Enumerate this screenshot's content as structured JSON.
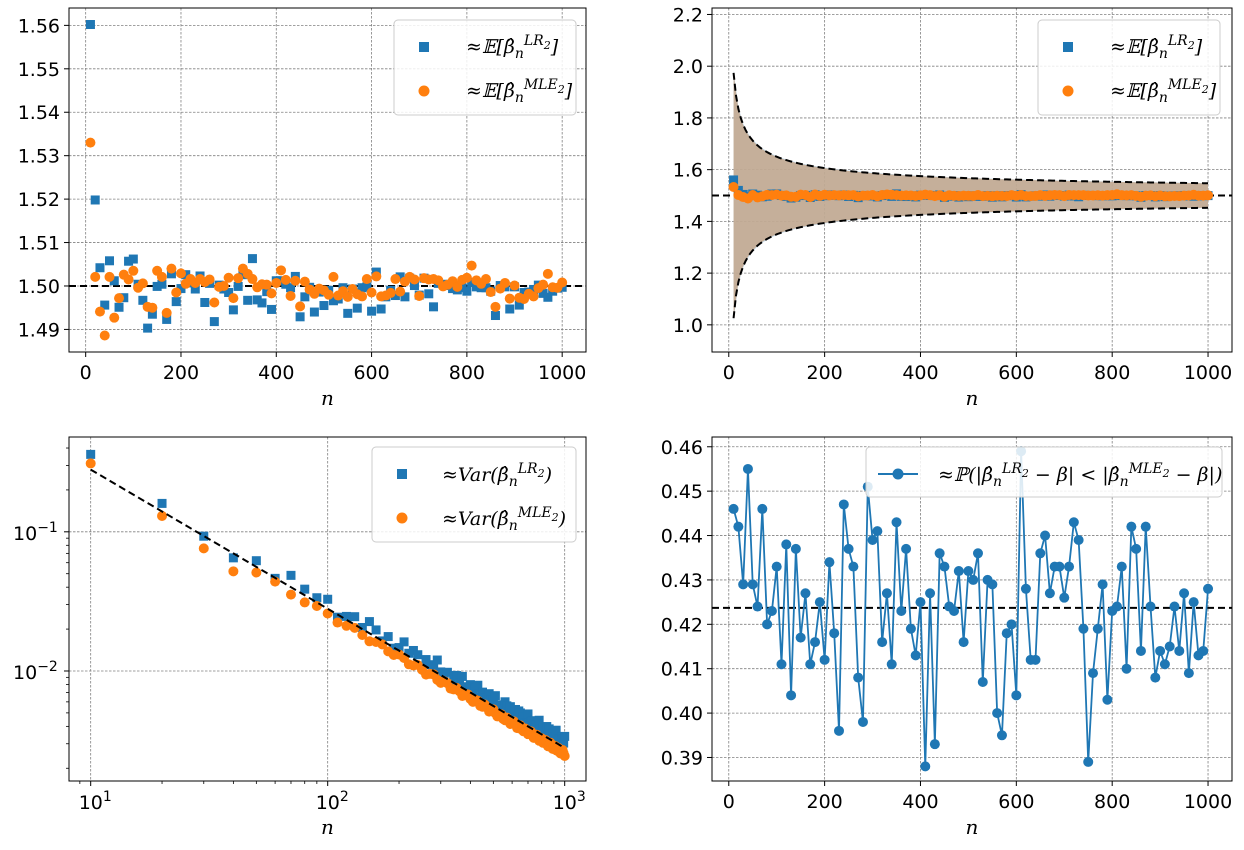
{
  "colors": {
    "blue": "#1f77b4",
    "orange": "#ff7f0e",
    "ref": "#000000",
    "band": "#c4a484"
  },
  "chart_data": [
    {
      "id": "mean",
      "type": "scatter",
      "xlabel": "n",
      "ylabel": "",
      "xlim": [
        -35,
        1050
      ],
      "ylim": [
        1.4848,
        1.564
      ],
      "xticks": [
        0,
        200,
        400,
        600,
        800,
        1000
      ],
      "xtick_labels": [
        "0",
        "200",
        "400",
        "600",
        "800",
        "1000"
      ],
      "yticks": [
        1.49,
        1.5,
        1.51,
        1.52,
        1.53,
        1.54,
        1.55,
        1.56
      ],
      "ytick_labels": [
        "1.49",
        "1.50",
        "1.51",
        "1.52",
        "1.53",
        "1.54",
        "1.55",
        "1.56"
      ],
      "grid": true,
      "legend_position": "top-right",
      "hline": 1.5,
      "x": [
        10,
        20,
        30,
        40,
        50,
        60,
        70,
        80,
        90,
        100,
        110,
        120,
        130,
        140,
        150,
        160,
        170,
        180,
        190,
        200,
        210,
        220,
        230,
        240,
        250,
        260,
        270,
        280,
        290,
        300,
        310,
        320,
        330,
        340,
        350,
        360,
        370,
        380,
        390,
        400,
        410,
        420,
        430,
        440,
        450,
        460,
        470,
        480,
        490,
        500,
        510,
        520,
        530,
        540,
        550,
        560,
        570,
        580,
        590,
        600,
        610,
        620,
        630,
        640,
        650,
        660,
        670,
        680,
        690,
        700,
        710,
        720,
        730,
        740,
        750,
        760,
        770,
        780,
        790,
        800,
        810,
        820,
        830,
        840,
        850,
        860,
        870,
        880,
        890,
        900,
        910,
        920,
        930,
        940,
        950,
        960,
        970,
        980,
        990,
        1000
      ],
      "series": [
        {
          "name": "≈𝔼[β̂ₙ^LR₂]",
          "marker": "square",
          "color": "#1f77b4",
          "values": [
            1.5602,
            1.5198,
            1.5042,
            1.4956,
            1.5058,
            1.5012,
            1.4951,
            1.4973,
            1.5057,
            1.5062,
            1.5004,
            1.4967,
            1.4903,
            1.4935,
            1.4999,
            1.5004,
            1.4923,
            1.5028,
            1.4964,
            1.4994,
            1.5026,
            1.5007,
            1.4993,
            1.5023,
            1.4962,
            1.5006,
            1.4918,
            1.5002,
            1.4993,
            1.4985,
            1.4945,
            1.4999,
            1.5026,
            1.4967,
            1.5063,
            1.4968,
            1.4961,
            1.4987,
            1.4946,
            1.5012,
            1.5012,
            1.5004,
            1.4996,
            1.5022,
            1.4929,
            1.4975,
            1.4997,
            1.494,
            1.4986,
            1.4955,
            1.499,
            1.4966,
            1.497,
            1.4996,
            1.4937,
            1.4993,
            1.4949,
            1.4996,
            1.4998,
            1.4942,
            1.5032,
            1.4947,
            1.4975,
            1.499,
            1.4978,
            1.5021,
            1.4975,
            1.5018,
            1.5001,
            1.4979,
            1.5018,
            1.4982,
            1.4952,
            1.5006,
            1.5004,
            1.5001,
            1.4994,
            1.4991,
            1.4996,
            1.4988,
            1.5008,
            1.4998,
            1.4996,
            1.4996,
            1.4988,
            1.4932,
            1.5001,
            1.4998,
            1.4947,
            1.4998,
            1.4956,
            1.4985,
            1.4986,
            1.4992,
            1.5002,
            1.4983,
            1.4974,
            1.4988,
            1.4995,
            1.4997
          ]
        },
        {
          "name": "≈𝔼[β̂ₙ^MLE₂]",
          "marker": "circle",
          "color": "#ff7f0e",
          "values": [
            1.533,
            1.5021,
            1.4941,
            1.4886,
            1.5021,
            1.4927,
            1.4972,
            1.5026,
            1.5015,
            1.5035,
            1.4996,
            1.5006,
            1.4952,
            1.495,
            1.5035,
            1.5021,
            1.4938,
            1.504,
            1.4985,
            1.5029,
            1.5005,
            1.5016,
            1.5007,
            1.5016,
            1.5009,
            1.5015,
            1.4962,
            1.4998,
            1.5,
            1.5019,
            1.4972,
            1.5018,
            1.504,
            1.5028,
            1.5016,
            1.4997,
            1.5004,
            1.5003,
            1.4983,
            1.5007,
            1.5036,
            1.5014,
            1.4977,
            1.5012,
            1.4953,
            1.501,
            1.4992,
            1.4982,
            1.4994,
            1.499,
            1.498,
            1.5021,
            1.4978,
            1.4988,
            1.4975,
            1.4993,
            1.4981,
            1.4976,
            1.5016,
            1.4985,
            1.5022,
            1.4976,
            1.4978,
            1.4984,
            1.5016,
            1.4987,
            1.501,
            1.5021,
            1.5015,
            1.4977,
            1.5018,
            1.5015,
            1.5016,
            1.5013,
            1.4999,
            1.5003,
            1.5011,
            1.4998,
            1.5014,
            1.5019,
            1.5047,
            1.5013,
            1.5005,
            1.5016,
            1.4986,
            1.4952,
            1.4994,
            1.5007,
            1.4971,
            1.5001,
            1.4973,
            1.497,
            1.4982,
            1.4976,
            1.4995,
            1.5003,
            1.5028,
            1.4997,
            1.4996,
            1.5008
          ]
        }
      ]
    },
    {
      "id": "band",
      "type": "line",
      "xlabel": "n",
      "ylabel": "",
      "xlim": [
        -35,
        1050
      ],
      "ylim": [
        0.895,
        2.225
      ],
      "xticks": [
        0,
        200,
        400,
        600,
        800,
        1000
      ],
      "xtick_labels": [
        "0",
        "200",
        "400",
        "600",
        "800",
        "1000"
      ],
      "yticks": [
        1.0,
        1.2,
        1.4,
        1.6,
        1.8,
        2.0,
        2.2
      ],
      "ytick_labels": [
        "1.0",
        "1.2",
        "1.4",
        "1.6",
        "1.8",
        "2.0",
        "2.2"
      ],
      "grid": true,
      "legend_position": "top-right",
      "hline": 1.5,
      "envelope_coefficient": 1.5,
      "series": [
        {
          "name": "≈𝔼[β̂ₙ^LR₂]",
          "marker": "square",
          "color": "#1f77b4"
        },
        {
          "name": "≈𝔼[β̂ₙ^MLE₂]",
          "marker": "circle",
          "color": "#ff7f0e"
        }
      ]
    },
    {
      "id": "variance",
      "type": "scatter",
      "xscale": "log",
      "yscale": "log",
      "xlabel": "n",
      "ylabel": "",
      "xlim": [
        8.1,
        1230
      ],
      "ylim": [
        0.00162,
        0.48
      ],
      "xticks": [
        10,
        100,
        1000
      ],
      "xtick_labels": [
        "10¹",
        "10²",
        "10³"
      ],
      "yticks": [
        0.01,
        0.1
      ],
      "ytick_labels": [
        "10⁻²",
        "10⁻¹"
      ],
      "grid": true,
      "legend_position": "top-right",
      "reference_line": {
        "style": "dashed",
        "formula": "2.8 / n"
      },
      "series": [
        {
          "name": "≈Var(β̂ₙ^LR₂)",
          "marker": "square",
          "color": "#1f77b4",
          "values_rule": "3.5 / n",
          "sample": [
            0.36,
            0.16,
            0.093,
            0.065,
            0.062
          ]
        },
        {
          "name": "≈Var(β̂ₙ^MLE₂)",
          "marker": "circle",
          "color": "#ff7f0e",
          "values_rule": "2.8 / n",
          "sample": [
            0.31,
            0.13,
            0.076,
            0.052,
            0.051
          ]
        }
      ]
    },
    {
      "id": "probability",
      "type": "line",
      "xlabel": "n",
      "ylabel": "",
      "xlim": [
        -35,
        1050
      ],
      "ylim": [
        0.3847,
        0.4622
      ],
      "xticks": [
        0,
        200,
        400,
        600,
        800,
        1000
      ],
      "xtick_labels": [
        "0",
        "200",
        "400",
        "600",
        "800",
        "1000"
      ],
      "yticks": [
        0.39,
        0.4,
        0.41,
        0.42,
        0.43,
        0.44,
        0.45,
        0.46
      ],
      "ytick_labels": [
        "0.39",
        "0.40",
        "0.41",
        "0.42",
        "0.43",
        "0.44",
        "0.45",
        "0.46"
      ],
      "grid": true,
      "legend_position": "top-right",
      "hline": 0.4237,
      "x": [
        10,
        20,
        30,
        40,
        50,
        60,
        70,
        80,
        90,
        100,
        110,
        120,
        130,
        140,
        150,
        160,
        170,
        180,
        190,
        200,
        210,
        220,
        230,
        240,
        250,
        260,
        270,
        280,
        290,
        300,
        310,
        320,
        330,
        340,
        350,
        360,
        370,
        380,
        390,
        400,
        410,
        420,
        430,
        440,
        450,
        460,
        470,
        480,
        490,
        500,
        510,
        520,
        530,
        540,
        550,
        560,
        570,
        580,
        590,
        600,
        610,
        620,
        630,
        640,
        650,
        660,
        670,
        680,
        690,
        700,
        710,
        720,
        730,
        740,
        750,
        760,
        770,
        780,
        790,
        800,
        810,
        820,
        830,
        840,
        850,
        860,
        870,
        880,
        890,
        900,
        910,
        920,
        930,
        940,
        950,
        960,
        970,
        980,
        990,
        1000
      ],
      "series": [
        {
          "name": "≈ℙ(|β̂ₙ^LR₂ − β| < |β̂ₙ^MLE₂ − β|)",
          "marker": "circle",
          "color": "#1f77b4",
          "values": [
            0.446,
            0.442,
            0.429,
            0.455,
            0.429,
            0.424,
            0.446,
            0.42,
            0.423,
            0.433,
            0.411,
            0.438,
            0.404,
            0.437,
            0.417,
            0.427,
            0.411,
            0.416,
            0.425,
            0.412,
            0.434,
            0.418,
            0.396,
            0.447,
            0.437,
            0.433,
            0.408,
            0.398,
            0.451,
            0.439,
            0.441,
            0.416,
            0.427,
            0.411,
            0.443,
            0.423,
            0.437,
            0.419,
            0.413,
            0.425,
            0.388,
            0.427,
            0.393,
            0.436,
            0.433,
            0.424,
            0.423,
            0.432,
            0.416,
            0.432,
            0.43,
            0.436,
            0.407,
            0.43,
            0.429,
            0.4,
            0.395,
            0.418,
            0.42,
            0.404,
            0.459,
            0.428,
            0.412,
            0.412,
            0.436,
            0.44,
            0.427,
            0.433,
            0.433,
            0.426,
            0.433,
            0.443,
            0.439,
            0.419,
            0.389,
            0.409,
            0.419,
            0.429,
            0.403,
            0.423,
            0.424,
            0.433,
            0.41,
            0.442,
            0.437,
            0.414,
            0.442,
            0.424,
            0.408,
            0.414,
            0.411,
            0.415,
            0.424,
            0.414,
            0.427,
            0.409,
            0.425,
            0.413,
            0.414,
            0.428
          ]
        }
      ]
    }
  ]
}
